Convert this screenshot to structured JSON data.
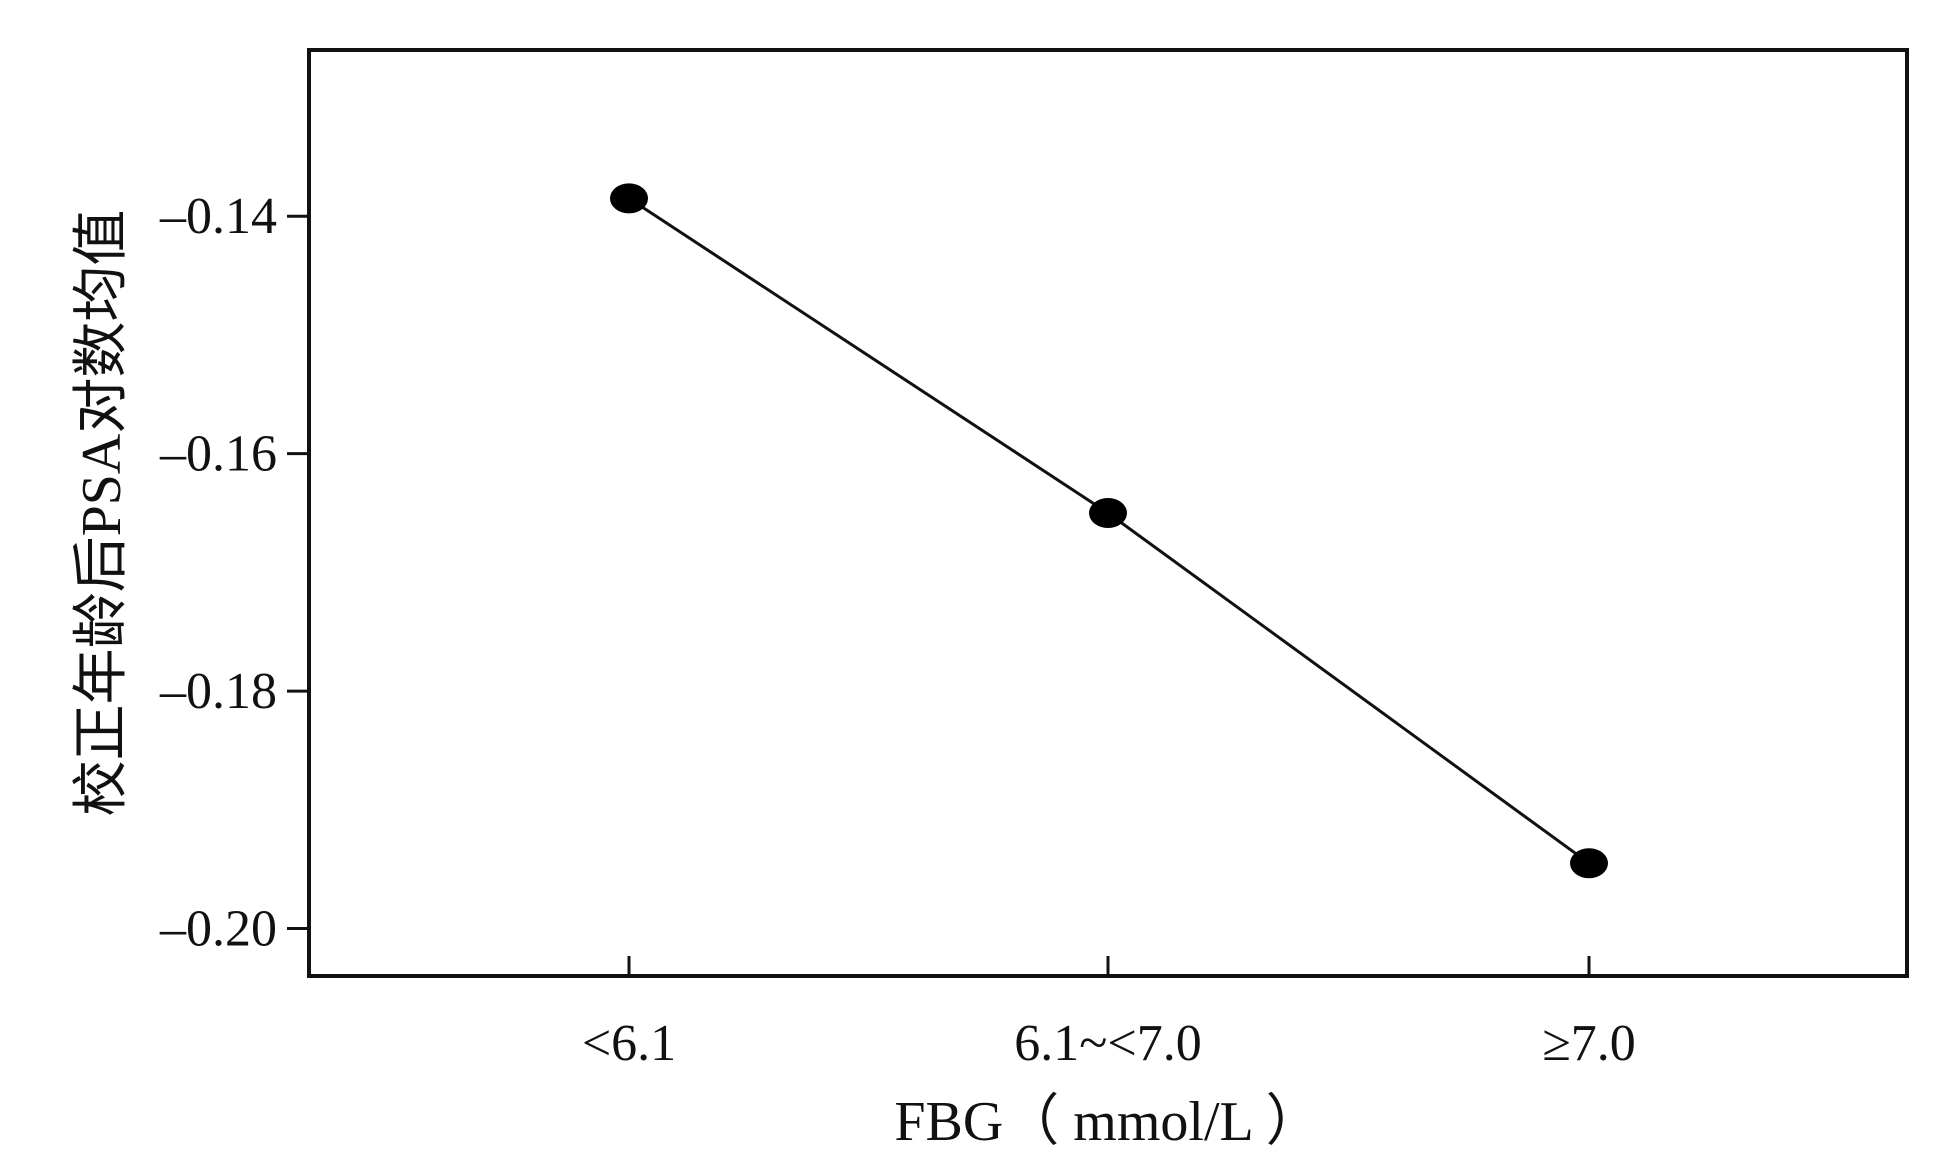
{
  "chart_data": {
    "type": "line",
    "categories": [
      "<6.1",
      "6.1~<7.0",
      "≥7.0"
    ],
    "series": [
      {
        "values": [
          -0.1385,
          -0.165,
          -0.1945
        ]
      }
    ],
    "xlabel": "FBG（ mmol/L ）",
    "ylabel": "校正年龄后PSA对数均值",
    "ylim": [
      -0.204,
      -0.126
    ],
    "yticks": [
      -0.14,
      -0.16,
      -0.18,
      -0.2
    ],
    "ytick_labels": [
      "–0.14",
      "–0.16",
      "–0.18",
      "–0.20"
    ],
    "grid": false,
    "legend": "none",
    "colors": {
      "line": "#111111",
      "marker": "#000000",
      "frame": "#111111"
    }
  }
}
